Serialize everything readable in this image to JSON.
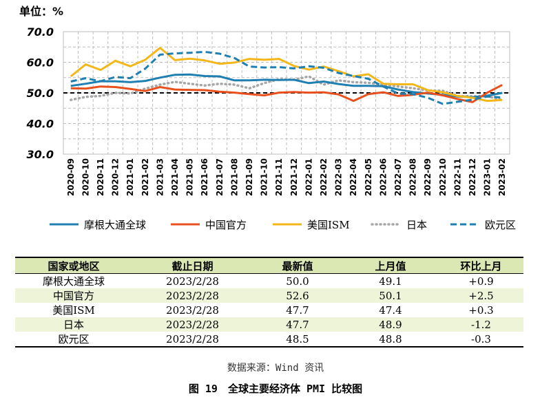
{
  "chart_data": {
    "type": "line",
    "unit_label": "单位：%",
    "ylim": [
      30,
      70
    ],
    "yticks": [
      "30.0",
      "40.0",
      "50.0",
      "60.0",
      "70.0"
    ],
    "grid": true,
    "legend_position": "bottom",
    "reference_line": 50,
    "categories": [
      "2020-09",
      "2020-10",
      "2020-11",
      "2020-12",
      "2021-01",
      "2021-02",
      "2021-03",
      "2021-04",
      "2021-05",
      "2021-06",
      "2021-07",
      "2021-08",
      "2021-09",
      "2021-10",
      "2021-11",
      "2021-12",
      "2022-01",
      "2022-02",
      "2022-03",
      "2022-04",
      "2022-05",
      "2022-06",
      "2022-07",
      "2022-08",
      "2022-09",
      "2022-10",
      "2022-11",
      "2022-12",
      "2023-01",
      "2023-02"
    ],
    "series": [
      {
        "name": "摩根大通全球",
        "color": "#1f7fb0",
        "style": "solid",
        "values": [
          52.3,
          53.0,
          53.8,
          53.8,
          53.5,
          53.9,
          55.0,
          55.9,
          56.0,
          55.5,
          55.4,
          54.1,
          54.1,
          54.3,
          54.2,
          54.3,
          53.2,
          53.7,
          52.9,
          52.3,
          52.3,
          52.2,
          51.1,
          50.3,
          49.8,
          49.4,
          48.8,
          48.6,
          49.1,
          50.0
        ]
      },
      {
        "name": "中国官方",
        "color": "#e8501e",
        "style": "solid",
        "values": [
          51.5,
          51.4,
          52.1,
          51.9,
          51.3,
          50.6,
          51.9,
          51.1,
          51.0,
          50.9,
          50.4,
          50.1,
          49.6,
          49.2,
          50.1,
          50.3,
          50.1,
          50.2,
          49.5,
          47.4,
          49.6,
          50.2,
          49.0,
          49.4,
          50.1,
          49.2,
          48.0,
          47.0,
          50.1,
          52.6
        ]
      },
      {
        "name": "美国ISM",
        "color": "#f4b71a",
        "style": "solid",
        "values": [
          55.4,
          59.3,
          57.5,
          60.5,
          58.7,
          60.8,
          64.7,
          60.7,
          61.2,
          60.6,
          59.5,
          59.9,
          61.1,
          60.8,
          61.1,
          58.8,
          57.6,
          58.6,
          57.1,
          55.4,
          56.1,
          53.0,
          52.8,
          52.8,
          50.9,
          50.2,
          49.0,
          48.4,
          47.4,
          47.7
        ]
      },
      {
        "name": "日本",
        "color": "#a6a6a6",
        "style": "dotted",
        "values": [
          47.7,
          48.7,
          49.0,
          50.0,
          49.8,
          51.4,
          52.7,
          53.6,
          53.0,
          52.4,
          53.0,
          52.7,
          51.5,
          53.2,
          54.5,
          54.3,
          55.4,
          52.7,
          54.1,
          53.5,
          53.3,
          52.7,
          52.1,
          51.5,
          50.8,
          50.7,
          49.0,
          48.9,
          48.9,
          47.7
        ]
      },
      {
        "name": "欧元区",
        "color": "#1f7fb0",
        "style": "dashed",
        "values": [
          53.7,
          54.8,
          53.8,
          55.2,
          54.8,
          57.9,
          62.5,
          62.9,
          63.1,
          63.4,
          62.8,
          61.4,
          58.6,
          58.3,
          58.4,
          58.0,
          58.7,
          58.2,
          56.5,
          55.5,
          54.6,
          52.1,
          49.8,
          49.6,
          48.4,
          46.4,
          47.1,
          47.8,
          48.8,
          48.5
        ]
      }
    ]
  },
  "table": {
    "headers": [
      "国家或地区",
      "截止日期",
      "最新值",
      "上月值",
      "环比上月"
    ],
    "rows": [
      [
        "摩根大通全球",
        "2023/2/28",
        "50.0",
        "49.1",
        "+0.9"
      ],
      [
        "中国官方",
        "2023/2/28",
        "52.6",
        "50.1",
        "+2.5"
      ],
      [
        "美国ISM",
        "2023/2/28",
        "47.7",
        "47.4",
        "+0.3"
      ],
      [
        "日本",
        "2023/2/28",
        "47.7",
        "48.9",
        "-1.2"
      ],
      [
        "欧元区",
        "2023/2/28",
        "48.5",
        "48.8",
        "-0.3"
      ]
    ]
  },
  "source": "数据来源：Wind 资讯",
  "caption": "图 19　全球主要经济体 PMI 比较图"
}
